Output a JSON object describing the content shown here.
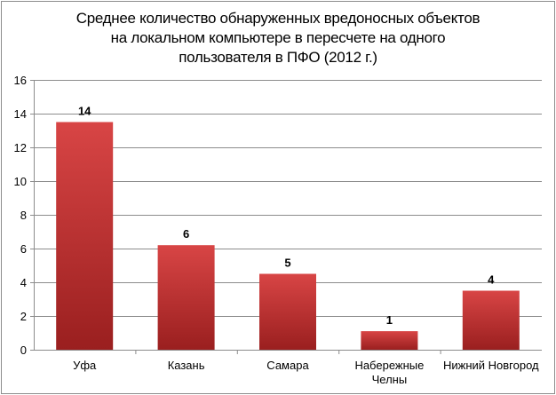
{
  "chart_data": {
    "type": "bar",
    "title_lines": [
      "Среднее количество обнаруженных вредоносных объектов",
      "на локальном компьютере в пересчете на одного",
      "пользователя в ПФО (2012 г.)"
    ],
    "categories": [
      [
        "Уфа"
      ],
      [
        "Казань"
      ],
      [
        "Самара"
      ],
      [
        "Набережные",
        "Челны"
      ],
      [
        "Нижний Новгород"
      ]
    ],
    "values": [
      13.5,
      6.2,
      4.5,
      1.1,
      3.5
    ],
    "data_labels": [
      "14",
      "6",
      "5",
      "1",
      "4"
    ],
    "y_ticks": [
      "0",
      "2",
      "4",
      "6",
      "8",
      "10",
      "12",
      "14",
      "16"
    ],
    "ylim": [
      0,
      16
    ],
    "grid": true,
    "legend": "none",
    "bar_color_top": "#d84545",
    "bar_color_bottom": "#9a1f1f",
    "grid_color": "#8c8c8c"
  }
}
